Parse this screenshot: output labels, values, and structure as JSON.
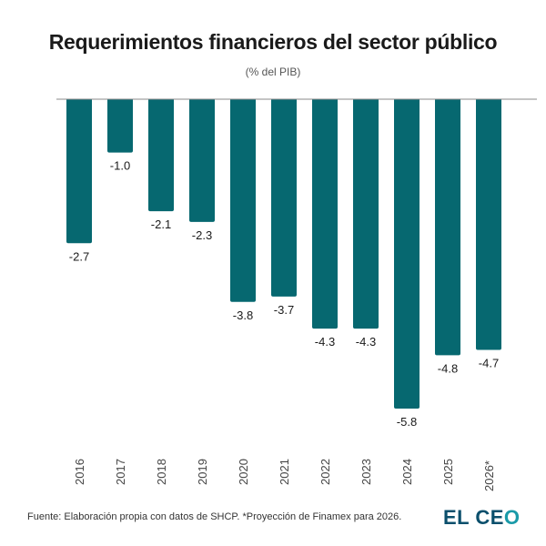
{
  "chart_data": {
    "type": "bar",
    "title": "Requerimientos financieros del sector público",
    "subtitle": "(% del PIB)",
    "categories": [
      "2016",
      "2017",
      "2018",
      "2019",
      "2020",
      "2021",
      "2022",
      "2023",
      "2024",
      "2025",
      "2026*"
    ],
    "values": [
      -2.7,
      -1.0,
      -2.1,
      -2.3,
      -3.8,
      -3.7,
      -4.3,
      -4.3,
      -5.8,
      -4.8,
      -4.7
    ],
    "value_labels": [
      "-2.7",
      "-1.0",
      "-2.1",
      "-2.3",
      "-3.8",
      "-3.7",
      "-4.3",
      "-4.3",
      "-5.8",
      "-4.8",
      "-4.7"
    ],
    "xlabel": "",
    "ylabel": "",
    "ylim": [
      -5.8,
      0
    ],
    "grid": false,
    "bar_color": "#066870"
  },
  "footer": {
    "source": "Fuente: Elaboración propia con datos de SHCP. *Proyección de Finamex para 2026.",
    "logo_main": "EL CE",
    "logo_o": "O"
  }
}
